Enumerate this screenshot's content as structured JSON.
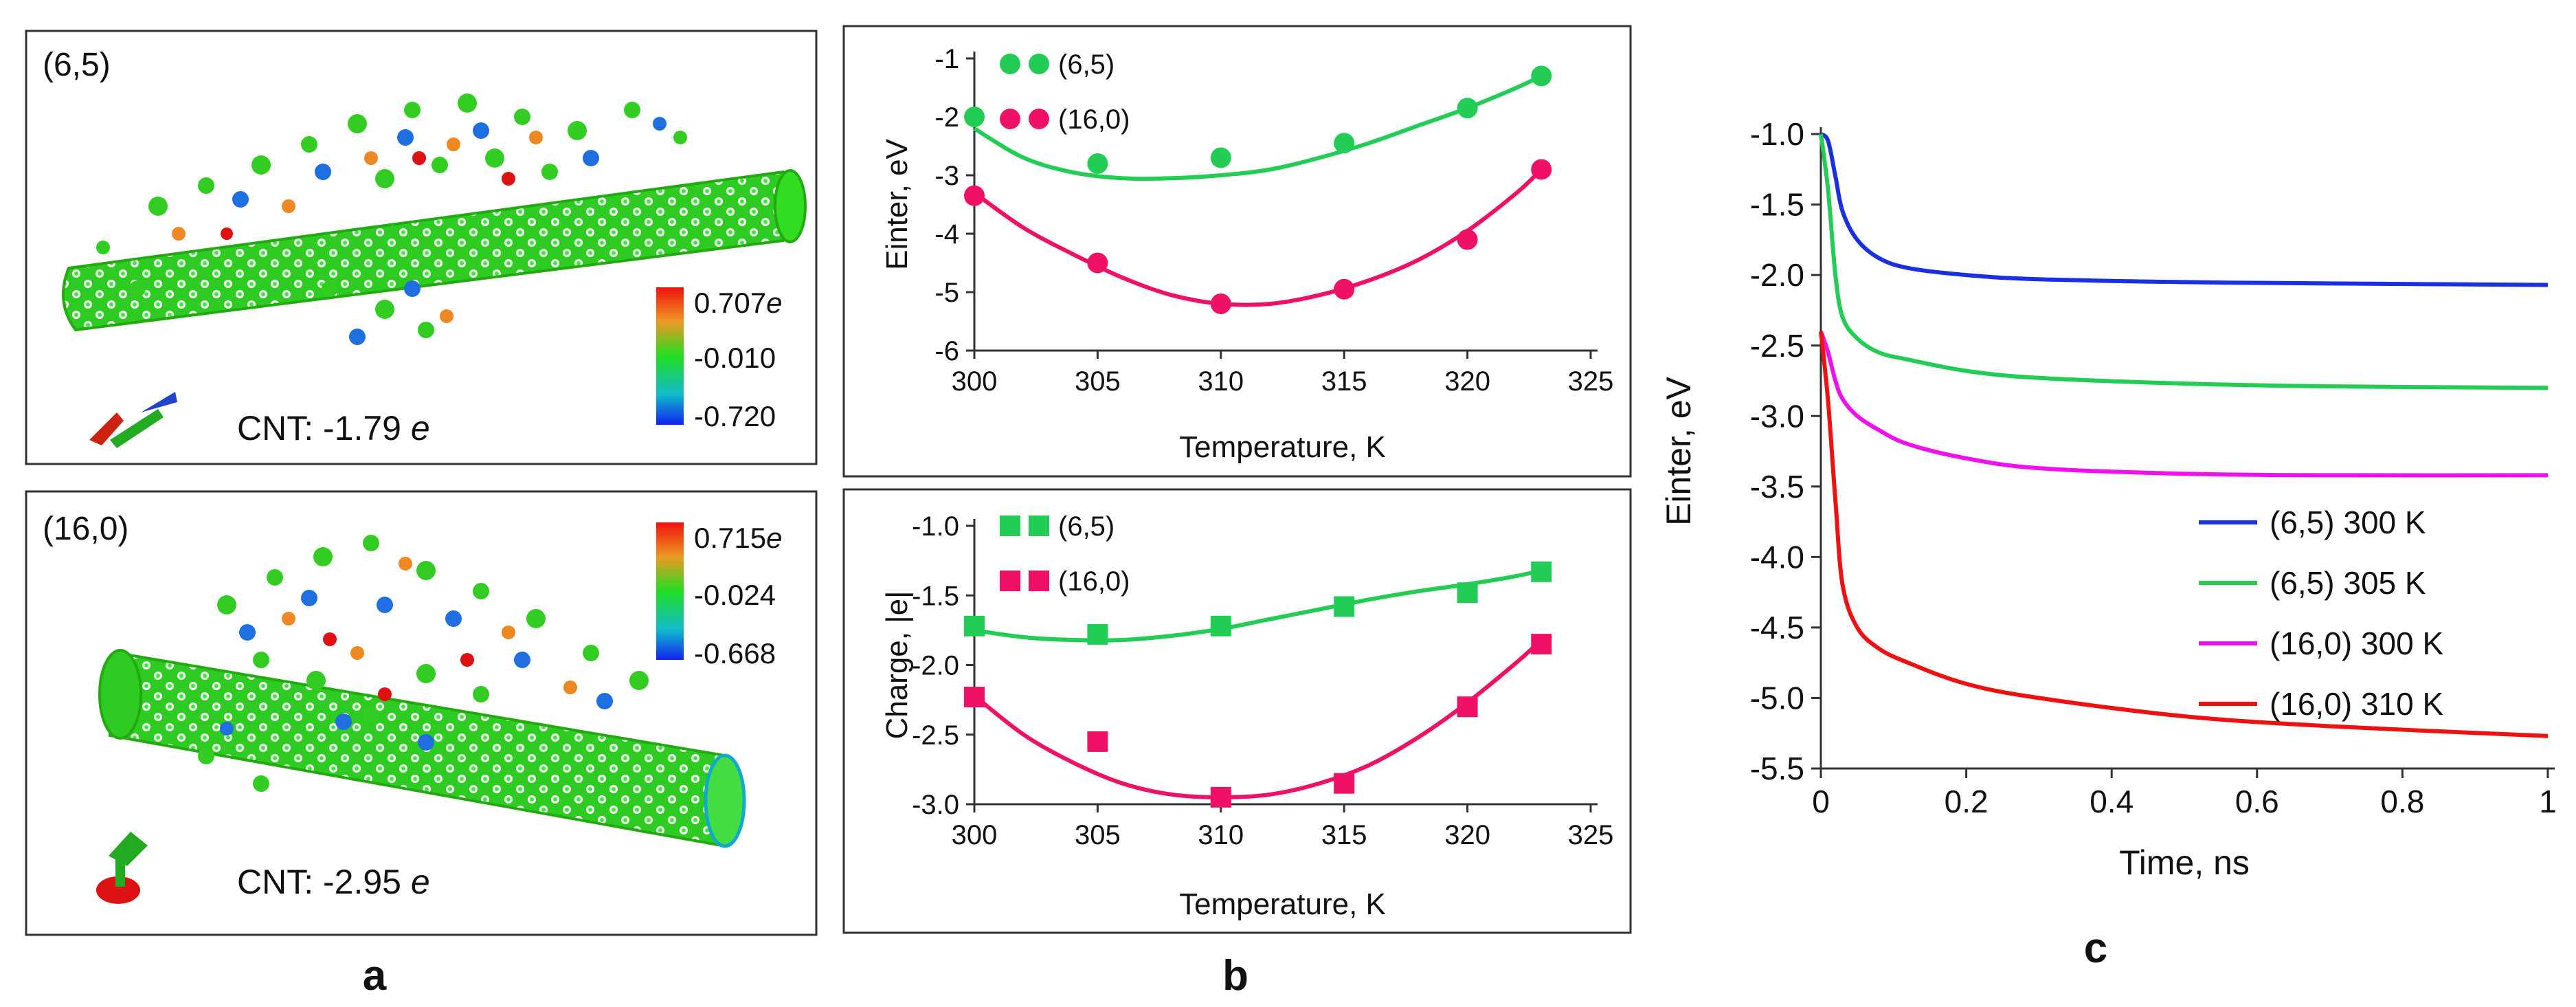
{
  "colors": {
    "green": "#22cc55",
    "pink": "#ee1166",
    "blue": "#1a2fe0",
    "magenta": "#ee11ee",
    "red": "#ee1111",
    "cnt": "#33dd22"
  },
  "panels": {
    "a_label": "a",
    "b_label": "b",
    "c_label": "c",
    "a_top": {
      "tube_label": "(6,5)",
      "colorbar_max": "0.707",
      "colorbar_mid": "-0.010",
      "colorbar_min": "-0.720",
      "charge_prefix": "CNT: -1.79",
      "unit": "e"
    },
    "a_bottom": {
      "tube_label": "(16,0)",
      "colorbar_max": "0.715",
      "colorbar_mid": "-0.024",
      "colorbar_min": "-0.668",
      "charge_prefix": "CNT: -2.95",
      "unit": "e"
    }
  },
  "chart_data": [
    {
      "id": "b_top",
      "type": "scatter",
      "title": "",
      "xlabel": "Temperature, K",
      "ylabel": "Einter, eV",
      "xlim": [
        300,
        325
      ],
      "ylim": [
        -6,
        -1
      ],
      "xticks": [
        "300",
        "305",
        "310",
        "315",
        "320",
        "325"
      ],
      "yticks": [
        "-1",
        "-2",
        "-3",
        "-4",
        "-5",
        "-6"
      ],
      "legend_position": "top-left",
      "series": [
        {
          "name": "(6,5)",
          "marker": "circle",
          "color": "#22cc55",
          "x": [
            300,
            305,
            310,
            315,
            320,
            323
          ],
          "y": [
            -2.0,
            -2.8,
            -2.7,
            -2.45,
            -1.85,
            -1.3
          ],
          "fit_x": [
            300,
            302,
            304,
            306,
            308,
            310,
            312,
            314,
            316,
            318,
            320,
            322,
            323
          ],
          "fit_y": [
            -2.2,
            -2.7,
            -2.95,
            -3.05,
            -3.05,
            -3.0,
            -2.9,
            -2.7,
            -2.45,
            -2.15,
            -1.85,
            -1.5,
            -1.3
          ]
        },
        {
          "name": "(16,0)",
          "marker": "circle",
          "color": "#ee1166",
          "x": [
            300,
            305,
            310,
            315,
            320,
            323
          ],
          "y": [
            -3.35,
            -4.5,
            -5.2,
            -4.95,
            -4.1,
            -2.9
          ],
          "fit_x": [
            300,
            302,
            304,
            306,
            308,
            310,
            312,
            314,
            316,
            318,
            320,
            322,
            323
          ],
          "fit_y": [
            -3.3,
            -3.9,
            -4.35,
            -4.75,
            -5.05,
            -5.2,
            -5.2,
            -5.05,
            -4.8,
            -4.45,
            -3.95,
            -3.3,
            -2.9
          ]
        }
      ]
    },
    {
      "id": "b_bottom",
      "type": "scatter",
      "title": "",
      "xlabel": "Temperature, K",
      "ylabel": "Charge, |e|",
      "xlim": [
        300,
        325
      ],
      "ylim": [
        -3.0,
        -1.0
      ],
      "xticks": [
        "300",
        "305",
        "310",
        "315",
        "320",
        "325"
      ],
      "yticks": [
        "-1.0",
        "-1.5",
        "-2.0",
        "-2.5",
        "-3.0"
      ],
      "legend_position": "top-left",
      "series": [
        {
          "name": "(6,5)",
          "marker": "square",
          "color": "#22cc55",
          "x": [
            300,
            305,
            310,
            315,
            320,
            323
          ],
          "y": [
            -1.72,
            -1.78,
            -1.72,
            -1.58,
            -1.48,
            -1.33
          ],
          "fit_x": [
            300,
            302,
            304,
            306,
            308,
            310,
            312,
            314,
            316,
            318,
            320,
            322,
            323
          ],
          "fit_y": [
            -1.75,
            -1.8,
            -1.82,
            -1.82,
            -1.79,
            -1.74,
            -1.67,
            -1.6,
            -1.53,
            -1.47,
            -1.42,
            -1.36,
            -1.32
          ]
        },
        {
          "name": "(16,0)",
          "marker": "square",
          "color": "#ee1166",
          "x": [
            300,
            305,
            310,
            315,
            320,
            323
          ],
          "y": [
            -2.23,
            -2.55,
            -2.95,
            -2.85,
            -2.3,
            -1.85
          ],
          "fit_x": [
            300,
            302,
            304,
            306,
            308,
            310,
            312,
            314,
            316,
            318,
            320,
            322,
            323
          ],
          "fit_y": [
            -2.22,
            -2.5,
            -2.7,
            -2.85,
            -2.93,
            -2.95,
            -2.93,
            -2.85,
            -2.72,
            -2.52,
            -2.27,
            -1.98,
            -1.82
          ]
        }
      ]
    },
    {
      "id": "c",
      "type": "line",
      "title": "",
      "xlabel": "Time, ns",
      "ylabel": "Einter, eV",
      "xlim": [
        0,
        1
      ],
      "ylim": [
        -5.5,
        -1.0
      ],
      "xticks": [
        "0",
        "0.2",
        "0.4",
        "0.6",
        "0.8",
        "1"
      ],
      "yticks": [
        "-1.0",
        "-1.5",
        "-2.0",
        "-2.5",
        "-3.0",
        "-3.5",
        "-4.0",
        "-4.5",
        "-5.0",
        "-5.5"
      ],
      "legend_position": "bottom-right",
      "series": [
        {
          "name": "(6,5) 300 K",
          "color": "#1a2fe0",
          "x": [
            0.0,
            0.01,
            0.02,
            0.03,
            0.05,
            0.08,
            0.12,
            0.2,
            0.3,
            0.5,
            0.7,
            1.0
          ],
          "y": [
            -1.0,
            -1.05,
            -1.3,
            -1.55,
            -1.75,
            -1.88,
            -1.95,
            -2.0,
            -2.03,
            -2.05,
            -2.06,
            -2.07
          ]
        },
        {
          "name": "(6,5) 305 K",
          "color": "#22cc55",
          "x": [
            0.0,
            0.01,
            0.02,
            0.03,
            0.05,
            0.08,
            0.12,
            0.2,
            0.3,
            0.5,
            0.7,
            1.0
          ],
          "y": [
            -1.0,
            -1.4,
            -2.0,
            -2.3,
            -2.45,
            -2.55,
            -2.6,
            -2.68,
            -2.73,
            -2.77,
            -2.79,
            -2.8
          ]
        },
        {
          "name": "(16,0) 300 K",
          "color": "#ee11ee",
          "x": [
            0.0,
            0.01,
            0.02,
            0.03,
            0.05,
            0.08,
            0.12,
            0.2,
            0.3,
            0.5,
            0.7,
            1.0
          ],
          "y": [
            -2.4,
            -2.55,
            -2.75,
            -2.88,
            -3.0,
            -3.1,
            -3.2,
            -3.3,
            -3.37,
            -3.41,
            -3.42,
            -3.42
          ]
        },
        {
          "name": "(16,0) 310 K",
          "color": "#ee1111",
          "x": [
            0.0,
            0.01,
            0.02,
            0.03,
            0.05,
            0.08,
            0.12,
            0.2,
            0.3,
            0.5,
            0.7,
            1.0
          ],
          "y": [
            -2.4,
            -2.9,
            -3.6,
            -4.2,
            -4.5,
            -4.65,
            -4.75,
            -4.9,
            -5.0,
            -5.13,
            -5.2,
            -5.27
          ]
        }
      ]
    }
  ]
}
